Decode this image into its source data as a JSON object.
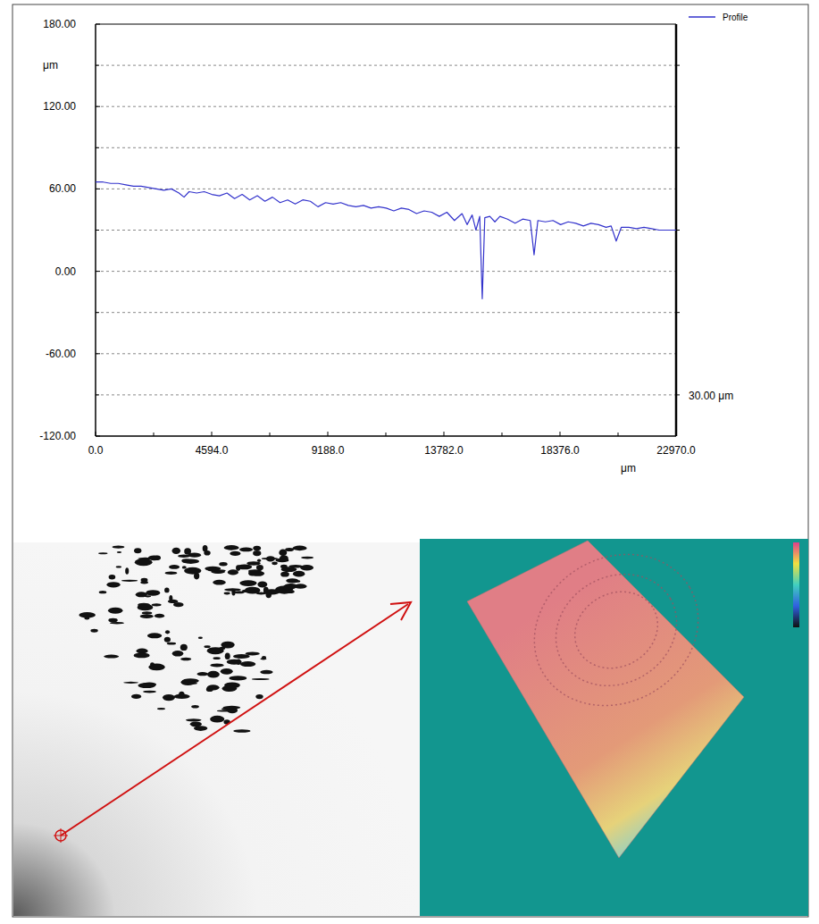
{
  "chart_data": {
    "type": "line",
    "x_label": "μm",
    "y_label": "μm",
    "scale_label": "30.00 μm",
    "legend": "right",
    "grid": true,
    "xlim": [
      0,
      22970
    ],
    "ylim": [
      -120,
      180
    ],
    "xticks": [
      {
        "value": 0,
        "label": "0.0"
      },
      {
        "value": 4594,
        "label": "4594.0"
      },
      {
        "value": 9188,
        "label": "9188.0"
      },
      {
        "value": 13782,
        "label": "13782.0"
      },
      {
        "value": 18376,
        "label": "18376.0"
      },
      {
        "value": 22970,
        "label": "22970.0"
      }
    ],
    "x_minor_ticks": [
      2297,
      6891,
      11485,
      16079,
      20673
    ],
    "yticks": [
      {
        "value": 180,
        "label": "180.00"
      },
      {
        "value": 120,
        "label": "120.00"
      },
      {
        "value": 60,
        "label": "60.00"
      },
      {
        "value": 0,
        "label": "0.00"
      },
      {
        "value": -60,
        "label": "-60.00"
      },
      {
        "value": -120,
        "label": "-120.00"
      }
    ],
    "y_minor_ticks": [
      150,
      90,
      30,
      -30,
      -90
    ],
    "x": [
      0,
      300,
      600,
      900,
      1200,
      1500,
      1800,
      2100,
      2400,
      2700,
      3000,
      3300,
      3500,
      3700,
      4000,
      4300,
      4600,
      4900,
      5200,
      5500,
      5800,
      6100,
      6400,
      6700,
      7000,
      7300,
      7600,
      7900,
      8200,
      8500,
      8800,
      9100,
      9400,
      9700,
      10000,
      10300,
      10600,
      10900,
      11200,
      11500,
      11800,
      12100,
      12400,
      12700,
      13000,
      13300,
      13600,
      13900,
      14200,
      14500,
      14700,
      14900,
      15050,
      15200,
      15300,
      15400,
      15600,
      15800,
      16000,
      16300,
      16600,
      16900,
      17200,
      17350,
      17500,
      17800,
      18100,
      18400,
      18700,
      19000,
      19300,
      19600,
      19900,
      20200,
      20400,
      20600,
      20800,
      21100,
      21400,
      21700,
      22000,
      22300,
      22600,
      22970
    ],
    "series": [
      {
        "name": "Profile",
        "color": "#3333cc",
        "values": [
          65,
          65,
          64,
          64,
          63,
          62,
          62,
          61,
          60,
          59,
          60,
          57,
          54,
          58,
          57,
          58,
          56,
          55,
          57,
          53,
          56,
          52,
          55,
          51,
          54,
          50,
          52,
          49,
          52,
          51,
          47,
          50,
          49,
          50,
          48,
          47,
          48,
          46,
          47,
          46,
          44,
          46,
          45,
          42,
          44,
          43,
          40,
          43,
          37,
          42,
          34,
          41,
          30,
          40,
          -20,
          39,
          40,
          36,
          40,
          38,
          35,
          38,
          37,
          12,
          37,
          36,
          37,
          34,
          36,
          35,
          33,
          35,
          34,
          32,
          33,
          22,
          32,
          32,
          31,
          32,
          31,
          30,
          30,
          30
        ]
      }
    ]
  }
}
